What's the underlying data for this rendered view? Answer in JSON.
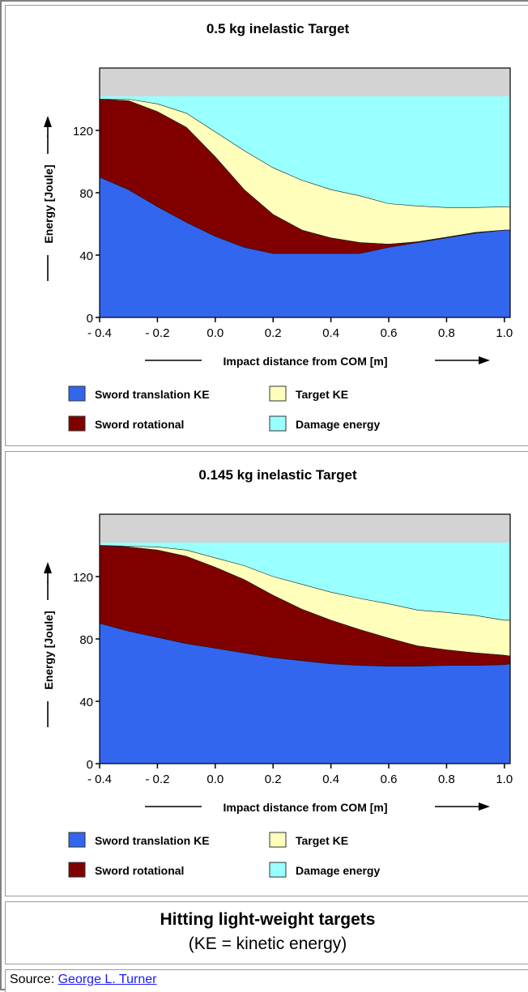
{
  "chart_data": [
    {
      "type": "area",
      "title": "0.5 kg inelastic Target",
      "xlabel": "Impact distance from COM  [m]",
      "ylabel": "Energy [Joule]",
      "x_ticks": [
        "- 0.4",
        "- 0.2",
        "0.0",
        "0.2",
        "0.4",
        "0.6",
        "0.8",
        "1.0"
      ],
      "y_ticks": [
        "0",
        "40",
        "80",
        "120"
      ],
      "xlim": [
        -0.4,
        1.02
      ],
      "ylim": [
        0,
        160
      ],
      "stacked": true,
      "legend_position": "bottom",
      "series": [
        {
          "name": "Sword translation KE",
          "color": "#3366ee",
          "x": [
            -0.4,
            -0.3,
            -0.2,
            -0.1,
            0.0,
            0.1,
            0.2,
            0.3,
            0.4,
            0.5,
            0.6,
            0.7,
            0.8,
            0.9,
            1.0,
            1.02
          ],
          "y": [
            90,
            82,
            71,
            61,
            52,
            45,
            41,
            41,
            41,
            41,
            45,
            48,
            51,
            54,
            56,
            56
          ]
        },
        {
          "name": "Sword rotational",
          "color": "#800000",
          "x": [
            -0.4,
            -0.3,
            -0.2,
            -0.1,
            0.0,
            0.1,
            0.2,
            0.3,
            0.4,
            0.5,
            0.6,
            0.7,
            0.8,
            0.9,
            1.0,
            1.02
          ],
          "y": [
            50,
            57,
            61,
            61,
            51,
            37,
            25,
            15,
            10,
            7,
            2,
            0.5,
            0.5,
            0.5,
            0,
            0
          ]
        },
        {
          "name": "Target KE",
          "color": "#ffffbb",
          "x": [
            -0.4,
            -0.3,
            -0.2,
            -0.1,
            0.0,
            0.1,
            0.2,
            0.3,
            0.4,
            0.5,
            0.6,
            0.7,
            0.8,
            0.9,
            1.0,
            1.02
          ],
          "y": [
            0,
            1,
            5,
            9,
            16,
            25,
            30,
            32,
            31,
            30,
            26,
            23,
            19,
            16,
            15,
            15
          ]
        },
        {
          "name": "Damage energy",
          "color": "#99ffff",
          "x": [
            -0.4,
            -0.3,
            -0.2,
            -0.1,
            0.0,
            0.1,
            0.2,
            0.3,
            0.4,
            0.5,
            0.6,
            0.7,
            0.8,
            0.9,
            1.0,
            1.02
          ],
          "y": [
            0,
            0,
            3,
            9,
            21,
            33,
            44,
            52,
            58,
            62,
            67,
            68.5,
            69.5,
            69.5,
            69,
            69
          ]
        }
      ]
    },
    {
      "type": "area",
      "title": "0.145 kg inelastic Target",
      "xlabel": "Impact distance from COM  [m]",
      "ylabel": "Energy [Joule]",
      "x_ticks": [
        "- 0.4",
        "- 0.2",
        "0.0",
        "0.2",
        "0.4",
        "0.6",
        "0.8",
        "1.0"
      ],
      "y_ticks": [
        "0",
        "40",
        "80",
        "120"
      ],
      "xlim": [
        -0.4,
        1.02
      ],
      "ylim": [
        0,
        160
      ],
      "stacked": true,
      "legend_position": "bottom",
      "series": [
        {
          "name": "Sword translation KE",
          "color": "#3366ee",
          "x": [
            -0.4,
            -0.3,
            -0.2,
            -0.1,
            0.0,
            0.1,
            0.2,
            0.3,
            0.4,
            0.5,
            0.6,
            0.7,
            0.8,
            0.9,
            1.0,
            1.02
          ],
          "y": [
            90,
            85,
            81,
            77,
            74,
            71,
            68,
            66,
            64,
            63,
            62.5,
            62.5,
            63,
            63,
            63.5,
            64
          ]
        },
        {
          "name": "Sword rotational",
          "color": "#800000",
          "x": [
            -0.4,
            -0.3,
            -0.2,
            -0.1,
            0.0,
            0.1,
            0.2,
            0.3,
            0.4,
            0.5,
            0.6,
            0.7,
            0.8,
            0.9,
            1.0,
            1.02
          ],
          "y": [
            50,
            54,
            56,
            56,
            52,
            47,
            40,
            33,
            28,
            23,
            18,
            13,
            10,
            8,
            6,
            5
          ]
        },
        {
          "name": "Target KE",
          "color": "#ffffbb",
          "x": [
            -0.4,
            -0.3,
            -0.2,
            -0.1,
            0.0,
            0.1,
            0.2,
            0.3,
            0.4,
            0.5,
            0.6,
            0.7,
            0.8,
            0.9,
            1.0,
            1.02
          ],
          "y": [
            0,
            0.5,
            2,
            4,
            6,
            9,
            12,
            16,
            18,
            20,
            22,
            23,
            24,
            24,
            22.5,
            23
          ]
        },
        {
          "name": "Damage energy",
          "color": "#99ffff",
          "x": [
            -0.4,
            -0.3,
            -0.2,
            -0.1,
            0.0,
            0.1,
            0.2,
            0.3,
            0.4,
            0.5,
            0.6,
            0.7,
            0.8,
            0.9,
            1.0,
            1.02
          ],
          "y": [
            0,
            0.5,
            1,
            3,
            8,
            13,
            20,
            25,
            30,
            34,
            37.5,
            41.5,
            43,
            45,
            48,
            48
          ]
        }
      ]
    }
  ],
  "caption": {
    "title": "Hitting light-weight targets",
    "subtitle": "(KE = kinetic energy)"
  },
  "source": {
    "label": "Source:",
    "link_text": "George L. Turner"
  }
}
